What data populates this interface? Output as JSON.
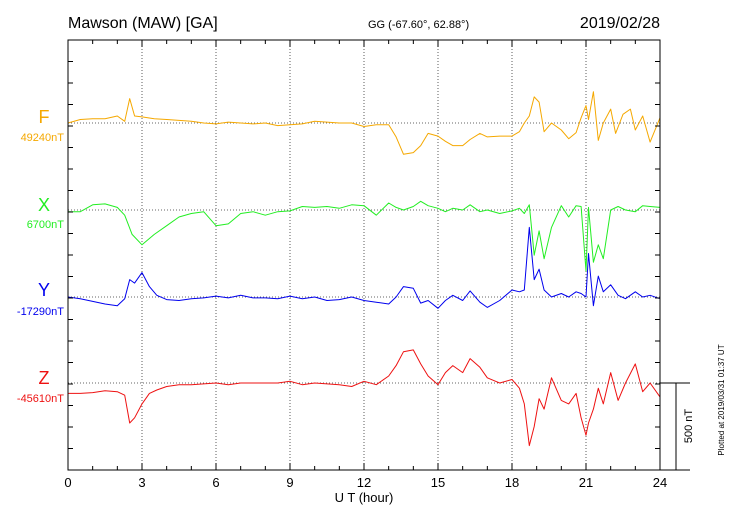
{
  "chart_data": {
    "type": "line",
    "title": "Mawson (MAW)  [GA]",
    "coords": "GG (-67.60°,  62.88°)",
    "date": "2019/02/28",
    "xlabel": "U T (hour)",
    "xlim": [
      0,
      24
    ],
    "x_ticks": [
      "0",
      "3",
      "6",
      "9",
      "12",
      "15",
      "18",
      "21",
      "24"
    ],
    "scale_label": "500 nT",
    "plotted_note": "Plotted at 2019/03/31 01:37 UT",
    "grid": true,
    "series": [
      {
        "name": "F",
        "baseline_label": "49240nT",
        "color": "#f5a800",
        "baseline_nT": 49240,
        "x": [
          0,
          0.5,
          1,
          1.5,
          2,
          2.3,
          2.5,
          2.7,
          3,
          3.5,
          4,
          4.5,
          5,
          5.5,
          6,
          6.5,
          7,
          7.5,
          8,
          8.5,
          9,
          9.5,
          10,
          10.5,
          11,
          11.5,
          12,
          12.5,
          13,
          13.3,
          13.6,
          14,
          14.3,
          14.6,
          15,
          15.3,
          15.6,
          16,
          16.3,
          16.7,
          17,
          17.5,
          18,
          18.3,
          18.5,
          18.7,
          18.9,
          19.1,
          19.3,
          19.6,
          20,
          20.3,
          20.6,
          20.8,
          21,
          21.1,
          21.3,
          21.5,
          21.7,
          22,
          22.2,
          22.5,
          22.8,
          23,
          23.3,
          23.6,
          24
        ],
        "y": [
          0,
          20,
          25,
          25,
          40,
          10,
          140,
          40,
          35,
          25,
          20,
          15,
          10,
          0,
          -5,
          5,
          0,
          -5,
          0,
          -15,
          -10,
          -5,
          10,
          5,
          0,
          0,
          -20,
          -10,
          -10,
          -80,
          -180,
          -170,
          -130,
          -60,
          -75,
          -105,
          -130,
          -130,
          -95,
          -60,
          -80,
          -75,
          -75,
          -50,
          0,
          40,
          150,
          120,
          -50,
          0,
          -40,
          -90,
          -55,
          30,
          100,
          20,
          180,
          -100,
          0,
          80,
          -60,
          50,
          80,
          -40,
          40,
          -110,
          30
        ]
      },
      {
        "name": "X",
        "baseline_label": "6700nT",
        "color": "#22ee22",
        "baseline_nT": 6700,
        "x": [
          0,
          0.5,
          1,
          1.5,
          2,
          2.3,
          2.6,
          3,
          3.5,
          4,
          4.5,
          5,
          5.5,
          6,
          6.5,
          7,
          7.5,
          8,
          8.5,
          9,
          9.5,
          10,
          10.5,
          11,
          11.5,
          12,
          12.5,
          13,
          13.3,
          13.6,
          14,
          14.3,
          14.6,
          15,
          15.3,
          15.6,
          16,
          16.3,
          16.7,
          17,
          17.5,
          18,
          18.3,
          18.5,
          18.7,
          18.9,
          19.1,
          19.3,
          19.6,
          20,
          20.3,
          20.6,
          20.8,
          21,
          21.1,
          21.3,
          21.5,
          21.7,
          22,
          22.3,
          22.6,
          23,
          23.3,
          23.6,
          24
        ],
        "y": [
          -10,
          -10,
          30,
          35,
          15,
          -30,
          -140,
          -200,
          -140,
          -90,
          -40,
          -20,
          -10,
          -90,
          -80,
          -20,
          -10,
          -30,
          -10,
          -5,
          20,
          15,
          20,
          10,
          30,
          25,
          -30,
          40,
          15,
          0,
          20,
          50,
          25,
          10,
          -10,
          10,
          0,
          30,
          -10,
          0,
          -20,
          -5,
          10,
          -20,
          30,
          -260,
          -120,
          -280,
          -100,
          25,
          -40,
          25,
          20,
          -350,
          15,
          -300,
          -200,
          -280,
          0,
          20,
          0,
          -10,
          25,
          20,
          15
        ]
      },
      {
        "name": "Y",
        "baseline_label": "-17290nT",
        "color": "#0000ee",
        "baseline_nT": -17290,
        "x": [
          0,
          0.5,
          1,
          1.5,
          2,
          2.3,
          2.5,
          2.7,
          3,
          3.3,
          3.6,
          4,
          4.5,
          5,
          5.5,
          6,
          6.5,
          7,
          7.5,
          8,
          8.5,
          9,
          9.5,
          10,
          10.5,
          11,
          11.5,
          12,
          12.5,
          13,
          13.3,
          13.6,
          14,
          14.3,
          14.6,
          15,
          15.3,
          15.6,
          16,
          16.3,
          16.7,
          17,
          17.5,
          18,
          18.3,
          18.5,
          18.7,
          18.9,
          19.1,
          19.3,
          19.6,
          20,
          20.3,
          20.6,
          20.8,
          21,
          21.1,
          21.3,
          21.5,
          21.7,
          22,
          22.3,
          22.6,
          23,
          23.3,
          23.6,
          24
        ],
        "y": [
          0,
          -10,
          -25,
          -40,
          -50,
          -10,
          100,
          80,
          140,
          60,
          10,
          -15,
          -20,
          -10,
          -5,
          5,
          -5,
          10,
          -5,
          -5,
          -10,
          5,
          -10,
          0,
          -20,
          -15,
          0,
          -20,
          -30,
          -40,
          0,
          60,
          50,
          -35,
          -20,
          -65,
          -20,
          10,
          -20,
          35,
          -30,
          -60,
          -20,
          40,
          30,
          40,
          400,
          100,
          160,
          40,
          0,
          20,
          0,
          30,
          20,
          0,
          250,
          -50,
          120,
          30,
          70,
          10,
          -10,
          30,
          0,
          10,
          -10
        ]
      },
      {
        "name": "Z",
        "baseline_label": "-45610nT",
        "color": "#ee1111",
        "baseline_nT": -45610,
        "x": [
          0,
          0.5,
          1,
          1.5,
          2,
          2.3,
          2.5,
          2.7,
          3,
          3.3,
          3.6,
          4,
          4.5,
          5,
          5.5,
          6,
          6.5,
          7,
          7.5,
          8,
          8.5,
          9,
          9.5,
          10,
          10.5,
          11,
          11.5,
          12,
          12.5,
          13,
          13.3,
          13.6,
          14,
          14.3,
          14.6,
          15,
          15.3,
          15.6,
          16,
          16.3,
          16.7,
          17,
          17.5,
          18,
          18.3,
          18.5,
          18.7,
          18.9,
          19.1,
          19.3,
          19.6,
          20,
          20.3,
          20.6,
          20.8,
          21,
          21.1,
          21.3,
          21.5,
          21.7,
          22,
          22.3,
          22.6,
          23,
          23.3,
          23.6,
          24
        ],
        "y": [
          -60,
          -60,
          -55,
          -45,
          -50,
          -70,
          -230,
          -200,
          -120,
          -60,
          -40,
          -20,
          -10,
          -10,
          -5,
          0,
          -10,
          0,
          0,
          0,
          0,
          10,
          -10,
          0,
          -5,
          -10,
          -20,
          10,
          -10,
          40,
          100,
          180,
          190,
          110,
          40,
          -10,
          60,
          100,
          60,
          140,
          90,
          30,
          0,
          20,
          -30,
          -120,
          -360,
          -250,
          -90,
          -150,
          30,
          -100,
          -120,
          -60,
          -200,
          -300,
          -230,
          -150,
          -30,
          -120,
          60,
          -100,
          0,
          110,
          -50,
          0,
          -80
        ]
      }
    ]
  }
}
